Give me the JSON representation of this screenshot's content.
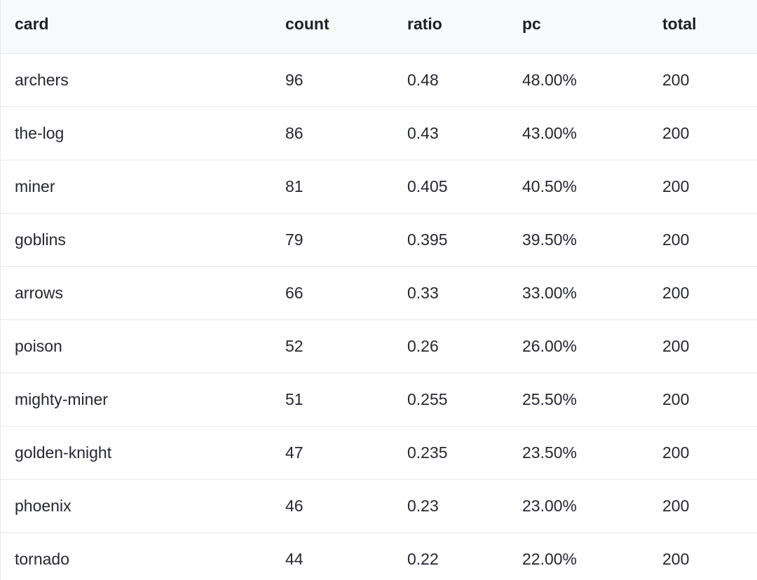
{
  "table": {
    "columns": [
      "card",
      "count",
      "ratio",
      "pc",
      "total"
    ],
    "rows": [
      {
        "card": "archers",
        "count": "96",
        "ratio": "0.48",
        "pc": "48.00%",
        "total": "200"
      },
      {
        "card": "the-log",
        "count": "86",
        "ratio": "0.43",
        "pc": "43.00%",
        "total": "200"
      },
      {
        "card": "miner",
        "count": "81",
        "ratio": "0.405",
        "pc": "40.50%",
        "total": "200"
      },
      {
        "card": "goblins",
        "count": "79",
        "ratio": "0.395",
        "pc": "39.50%",
        "total": "200"
      },
      {
        "card": "arrows",
        "count": "66",
        "ratio": "0.33",
        "pc": "33.00%",
        "total": "200"
      },
      {
        "card": "poison",
        "count": "52",
        "ratio": "0.26",
        "pc": "26.00%",
        "total": "200"
      },
      {
        "card": "mighty-miner",
        "count": "51",
        "ratio": "0.255",
        "pc": "25.50%",
        "total": "200"
      },
      {
        "card": "golden-knight",
        "count": "47",
        "ratio": "0.235",
        "pc": "23.50%",
        "total": "200"
      },
      {
        "card": "phoenix",
        "count": "46",
        "ratio": "0.23",
        "pc": "23.00%",
        "total": "200"
      },
      {
        "card": "tornado",
        "count": "44",
        "ratio": "0.22",
        "pc": "22.00%",
        "total": "200"
      }
    ]
  }
}
